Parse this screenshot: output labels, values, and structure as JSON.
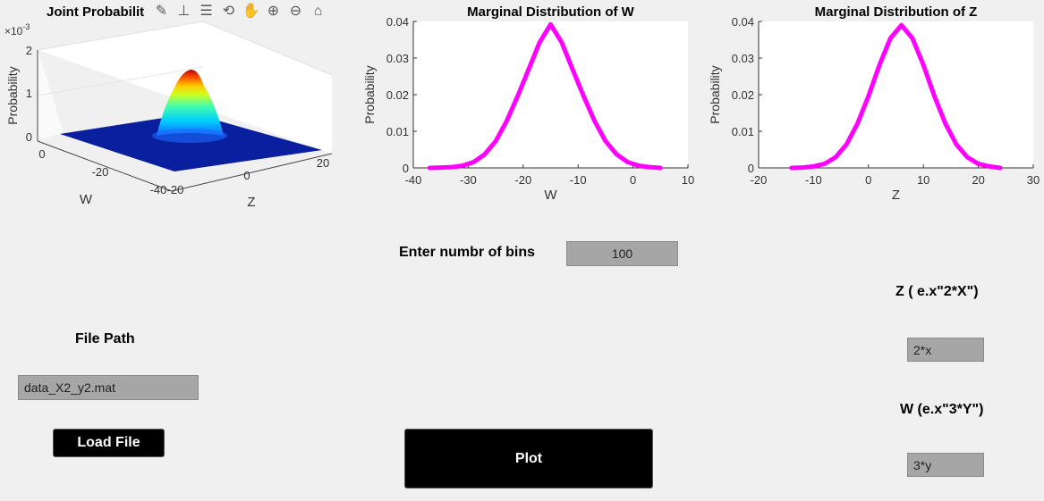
{
  "plot3d": {
    "title": "Joint Probabilit",
    "exponent_base": "×10",
    "exponent_power": "-3",
    "ylabel": "Probability",
    "zticks": [
      "0",
      "1",
      "2"
    ],
    "w_axis_label": "W",
    "w_ticks": [
      "0",
      "-20",
      "-40"
    ],
    "z_axis_label": "Z",
    "z_ticks": [
      "-20",
      "0",
      "20"
    ]
  },
  "toolbar": {
    "icons": [
      "brush-icon",
      "data-tips-icon",
      "legend-icon",
      "rotate-icon",
      "pan-icon",
      "zoom-in-icon",
      "zoom-out-icon",
      "home-icon"
    ]
  },
  "chart_data": [
    {
      "type": "line",
      "title": "Marginal Distribution of W",
      "xlabel": "W",
      "ylabel": "Probability",
      "xlim": [
        -40,
        10
      ],
      "ylim": [
        0,
        0.04
      ],
      "xticks": [
        "-40",
        "-30",
        "-20",
        "-10",
        "0",
        "10"
      ],
      "yticks": [
        "0",
        "0.01",
        "0.02",
        "0.03",
        "0.04"
      ],
      "line_color": "#ff00ff",
      "series": [
        {
          "x": [
            -37,
            -35,
            -33,
            -31,
            -29,
            -27,
            -25,
            -23,
            -21,
            -19,
            -17,
            -15,
            -13,
            -11,
            -9,
            -7,
            -5,
            -3,
            -1,
            1,
            3,
            5
          ],
          "y": [
            0,
            0.0001,
            0.0002,
            0.0006,
            0.0016,
            0.0037,
            0.0073,
            0.0128,
            0.0196,
            0.0269,
            0.0343,
            0.0392,
            0.0343,
            0.0269,
            0.0196,
            0.0128,
            0.0073,
            0.0037,
            0.0016,
            0.0006,
            0.0002,
            0
          ]
        }
      ]
    },
    {
      "type": "line",
      "title": "Marginal Distribution of Z",
      "xlabel": "Z",
      "ylabel": "Probability",
      "xlim": [
        -20,
        30
      ],
      "ylim": [
        0,
        0.04
      ],
      "xticks": [
        "-20",
        "-10",
        "0",
        "10",
        "20",
        "30"
      ],
      "yticks": [
        "0",
        "0.01",
        "0.02",
        "0.03",
        "0.04"
      ],
      "line_color": "#ff00ff",
      "series": [
        {
          "x": [
            -14,
            -12,
            -10,
            -8,
            -6,
            -4,
            -2,
            0,
            2,
            4,
            6,
            8,
            10,
            12,
            14,
            16,
            18,
            20,
            22,
            24
          ],
          "y": [
            0,
            0.0001,
            0.0004,
            0.0011,
            0.0029,
            0.0064,
            0.0121,
            0.0196,
            0.0281,
            0.0354,
            0.039,
            0.0354,
            0.0281,
            0.0196,
            0.0121,
            0.0064,
            0.0029,
            0.0011,
            0.0004,
            0
          ]
        }
      ]
    }
  ],
  "controls": {
    "bins_label": "Enter numbr of bins",
    "bins_value": "100",
    "file_path_label": "File Path",
    "file_path_value": "data_X2_y2.mat",
    "load_button": "Load File",
    "plot_button": "Plot",
    "z_label": "Z  ( e.x\"2*X\")",
    "z_value": "2*x",
    "w_label": "W (e.x\"3*Y\")",
    "w_value": "3*y"
  }
}
